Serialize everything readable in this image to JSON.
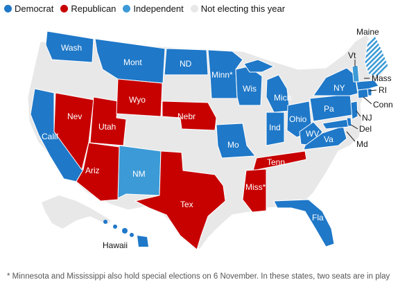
{
  "legend": [
    {
      "label": "Democrat",
      "color": "#1f78c8"
    },
    {
      "label": "Republican",
      "color": "#c70000"
    },
    {
      "label": "Independent",
      "color": "#3c9ad6"
    },
    {
      "label": "Not electing this year",
      "color": "#e8e8e8"
    }
  ],
  "states": {
    "wash": "Wash",
    "mont": "Mont",
    "nd": "ND",
    "minn": "Minn*",
    "wis": "Wis",
    "mich": "Mich",
    "maine": "Maine",
    "vt": "Vt",
    "mass": "Mass",
    "ri": "RI",
    "ny": "NY",
    "conn": "Conn",
    "nj": "NJ",
    "pa": "Pa",
    "del": "Del",
    "md": "Md",
    "ohio": "Ohio",
    "ind": "Ind",
    "wv": "WV",
    "va": "Va",
    "wyo": "Wyo",
    "nev": "Nev",
    "utah": "Utah",
    "calif": "Calif",
    "nebr": "Nebr",
    "mo": "Mo",
    "tenn": "Tenn",
    "ariz": "Ariz",
    "nm": "NM",
    "tex": "Tex",
    "miss": "Miss*",
    "fla": "Fla",
    "hawaii": "Hawaii"
  },
  "footnote": "* Minnesota and Mississippi also hold special elections on 6 November. In these states, two seats are in play"
}
